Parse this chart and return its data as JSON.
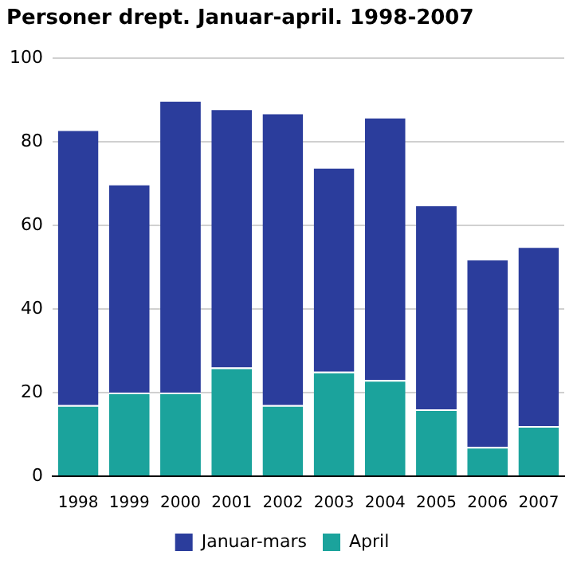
{
  "chart_data": {
    "type": "bar",
    "title": "Personer drept. Januar-april. 1998-2007",
    "categories": [
      "1998",
      "1999",
      "2000",
      "2001",
      "2002",
      "2003",
      "2004",
      "2005",
      "2006",
      "2007"
    ],
    "stacked": true,
    "series": [
      {
        "name": "April",
        "color": "#1ba39c",
        "values": [
          17,
          20,
          20,
          26,
          17,
          25,
          23,
          16,
          7,
          12
        ]
      },
      {
        "name": "Januar-mars",
        "color": "#2b3d9c",
        "values": [
          66,
          50,
          70,
          62,
          70,
          49,
          63,
          49,
          45,
          43
        ]
      }
    ],
    "ylim": [
      0,
      100
    ],
    "yticks": [
      0,
      20,
      40,
      60,
      80,
      100
    ],
    "grid": "y",
    "legend": "bottom"
  }
}
